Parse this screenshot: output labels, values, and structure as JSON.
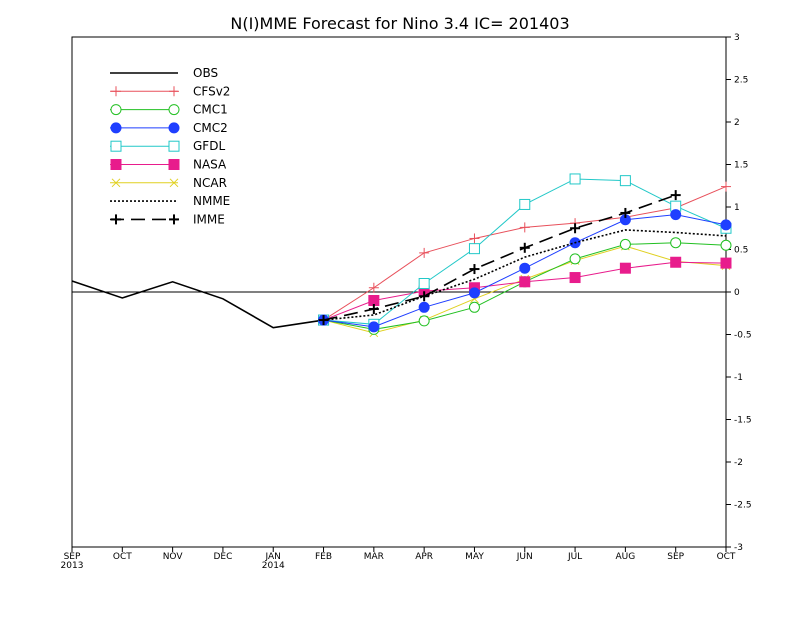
{
  "chart_data": {
    "type": "line",
    "title": "N(I)MME Forecast for Nino 3.4  IC= 201403",
    "x_labels": [
      {
        "month": "SEP",
        "year": "2013"
      },
      {
        "month": "OCT",
        "year": ""
      },
      {
        "month": "NOV",
        "year": ""
      },
      {
        "month": "DEC",
        "year": ""
      },
      {
        "month": "JAN",
        "year": "2014"
      },
      {
        "month": "FEB",
        "year": ""
      },
      {
        "month": "MAR",
        "year": ""
      },
      {
        "month": "APR",
        "year": ""
      },
      {
        "month": "MAY",
        "year": ""
      },
      {
        "month": "JUN",
        "year": ""
      },
      {
        "month": "JUL",
        "year": ""
      },
      {
        "month": "AUG",
        "year": ""
      },
      {
        "month": "SEP",
        "year": ""
      },
      {
        "month": "OCT",
        "year": ""
      }
    ],
    "ylim": [
      -3,
      3
    ],
    "y_ticks": [
      "3",
      "2.5",
      "2",
      "1.5",
      "1",
      "0.5",
      "0",
      "-0.5",
      "-1",
      "-1.5",
      "-2",
      "-2.5",
      "-3"
    ],
    "y_tick_values": [
      3,
      2.5,
      2,
      1.5,
      1,
      0.5,
      0,
      -0.5,
      -1,
      -1.5,
      -2,
      -2.5,
      -3
    ],
    "y_axis_side": "right",
    "zero_line": true,
    "legend_position": "top-left",
    "series": [
      {
        "name": "OBS",
        "color": "#000000",
        "marker": "none",
        "dash": "solid",
        "width": 1.6,
        "x": [
          0,
          1,
          2,
          3,
          4,
          5
        ],
        "y": [
          0.13,
          -0.07,
          0.12,
          -0.08,
          -0.42,
          -0.33
        ]
      },
      {
        "name": "CFSv2",
        "color": "#e8505b",
        "marker": "plus",
        "dash": "solid",
        "width": 1,
        "x": [
          5,
          6,
          7,
          8,
          9,
          10,
          11,
          12,
          13
        ],
        "y": [
          -0.33,
          0.05,
          0.46,
          0.63,
          0.76,
          0.81,
          0.88,
          0.99,
          1.24
        ]
      },
      {
        "name": "CMC1",
        "color": "#22c022",
        "marker": "open-circle",
        "dash": "solid",
        "width": 1,
        "x": [
          5,
          6,
          7,
          8,
          9,
          10,
          11,
          12,
          13
        ],
        "y": [
          -0.33,
          -0.44,
          -0.34,
          -0.18,
          0.12,
          0.39,
          0.56,
          0.58,
          0.55
        ]
      },
      {
        "name": "CMC2",
        "color": "#1f3fff",
        "marker": "filled-circle",
        "dash": "solid",
        "width": 1,
        "x": [
          5,
          6,
          7,
          8,
          9,
          10,
          11,
          12,
          13
        ],
        "y": [
          -0.33,
          -0.41,
          -0.18,
          -0.01,
          0.28,
          0.58,
          0.85,
          0.91,
          0.79
        ]
      },
      {
        "name": "GFDL",
        "color": "#22c8c8",
        "marker": "open-square",
        "dash": "solid",
        "width": 1,
        "x": [
          5,
          6,
          7,
          8,
          9,
          10,
          11,
          12,
          13
        ],
        "y": [
          -0.33,
          -0.38,
          0.1,
          0.51,
          1.03,
          1.33,
          1.31,
          1.01,
          0.75
        ]
      },
      {
        "name": "NASA",
        "color": "#e81c8c",
        "marker": "filled-square",
        "dash": "solid",
        "width": 1,
        "x": [
          5,
          6,
          7,
          8,
          9,
          10,
          11,
          12,
          13
        ],
        "y": [
          -0.33,
          -0.1,
          0.01,
          0.05,
          0.12,
          0.17,
          0.28,
          0.35,
          0.34
        ]
      },
      {
        "name": "NCAR",
        "color": "#e0d020",
        "marker": "x",
        "dash": "solid",
        "width": 1,
        "x": [
          5,
          6,
          7,
          8,
          9,
          10,
          11,
          12,
          13
        ],
        "y": [
          -0.33,
          -0.48,
          -0.33,
          -0.08,
          0.15,
          0.37,
          0.54,
          0.36,
          0.31
        ]
      },
      {
        "name": "NMME",
        "color": "#000000",
        "marker": "none",
        "dash": "dotted",
        "width": 1.6,
        "x": [
          5,
          6,
          7,
          8,
          9,
          10,
          11,
          12,
          13
        ],
        "y": [
          -0.33,
          -0.27,
          -0.05,
          0.15,
          0.41,
          0.58,
          0.73,
          0.7,
          0.66
        ]
      },
      {
        "name": "IMME",
        "color": "#000000",
        "marker": "plus",
        "dash": "dashed",
        "width": 1.6,
        "x": [
          5,
          6,
          7,
          8,
          9,
          10,
          11,
          12
        ],
        "y": [
          -0.33,
          -0.2,
          -0.05,
          0.27,
          0.52,
          0.75,
          0.93,
          1.14
        ]
      }
    ]
  }
}
